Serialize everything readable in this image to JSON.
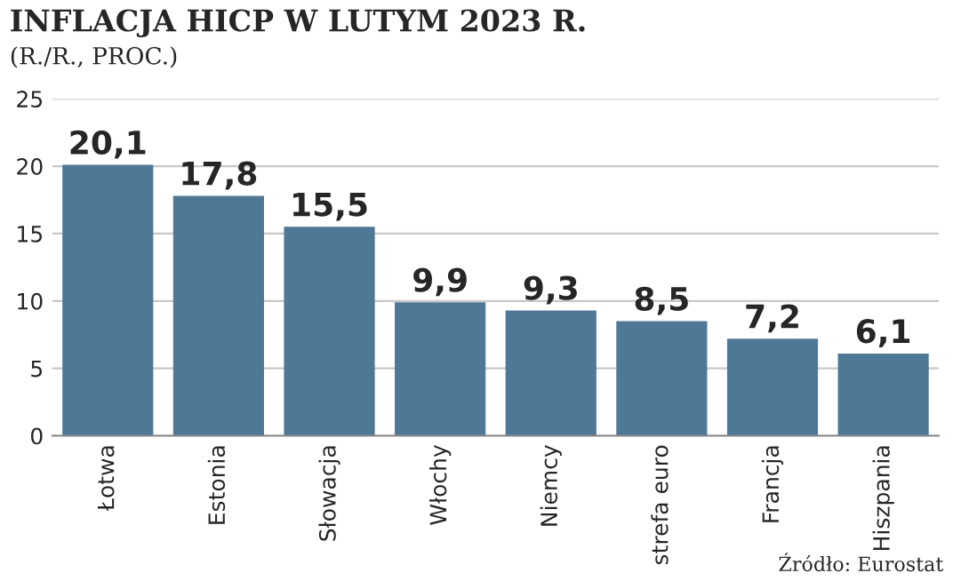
{
  "chart_data": {
    "type": "bar",
    "title": "INFLACJA HICP W LUTYM 2023 R.",
    "subtitle": "(R./R., PROC.)",
    "categories": [
      "Łotwa",
      "Estonia",
      "Słowacja",
      "Włochy",
      "Niemcy",
      "strefa euro",
      "Francja",
      "Hiszpania"
    ],
    "values": [
      20.1,
      17.8,
      15.5,
      9.9,
      9.3,
      8.5,
      7.2,
      6.1
    ],
    "value_labels": [
      "20,1",
      "17,8",
      "15,5",
      "9,9",
      "9,3",
      "8,5",
      "7,2",
      "6,1"
    ],
    "color": "#4f7896",
    "ylim": [
      0,
      25
    ],
    "yticks": [
      0,
      5,
      10,
      15,
      20,
      25
    ],
    "grid": "y",
    "annotations": [
      "Źródło: Eurostat"
    ]
  }
}
